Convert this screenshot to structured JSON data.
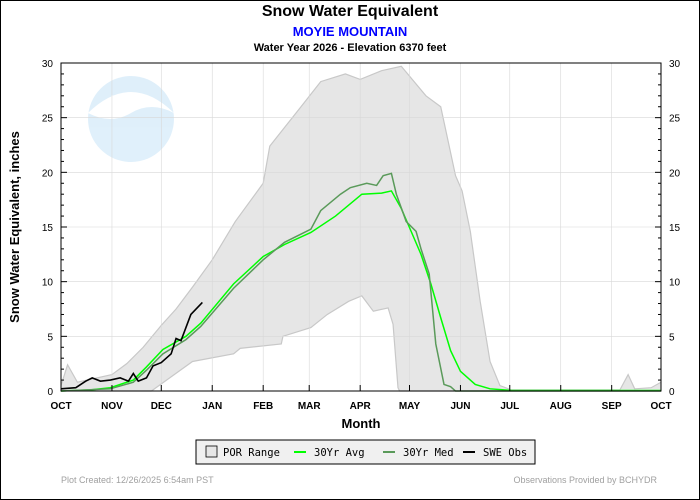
{
  "header": {
    "title": "Snow Water Equivalent",
    "station": "MOYIE MOUNTAIN",
    "subtitle": "Water Year 2026 -  Elevation 6370 feet"
  },
  "footer": {
    "created": "Plot Created: 12/26/2025 6:54am PST",
    "provider": "Observations Provided by BCHYDR"
  },
  "watermark": {
    "logo_text": "NOAA"
  },
  "chart_data": {
    "type": "line",
    "title": "Snow Water Equivalent",
    "xlabel": "Month",
    "ylabel": "Snow Water Equivalent, inches",
    "xlim": [
      "2025-10-01",
      "2026-10-01"
    ],
    "ylim": [
      0,
      30
    ],
    "yticks": [
      0,
      5,
      10,
      15,
      20,
      25,
      30
    ],
    "xticks": [
      {
        "date": "2025-10-01",
        "label": "OCT"
      },
      {
        "date": "2025-11-01",
        "label": "NOV"
      },
      {
        "date": "2025-12-01",
        "label": "DEC"
      },
      {
        "date": "2026-01-01",
        "label": "JAN"
      },
      {
        "date": "2026-02-01",
        "label": "FEB"
      },
      {
        "date": "2026-03-01",
        "label": "MAR"
      },
      {
        "date": "2026-04-01",
        "label": "APR"
      },
      {
        "date": "2026-05-01",
        "label": "MAY"
      },
      {
        "date": "2026-06-01",
        "label": "JUN"
      },
      {
        "date": "2026-07-01",
        "label": "JUL"
      },
      {
        "date": "2026-08-01",
        "label": "AUG"
      },
      {
        "date": "2026-09-01",
        "label": "SEP"
      },
      {
        "date": "2026-10-01",
        "label": "OCT"
      }
    ],
    "grid": true,
    "legend_position": "bottom",
    "colors": {
      "por": "#e6e6e6",
      "por_edge": "#c8c8c8",
      "avg": "#00ff00",
      "med": "#5a9a5a",
      "obs": "#000000"
    },
    "series": [
      {
        "name": "POR Range",
        "kind": "band",
        "upper": [
          [
            "2025-10-01",
            0.5
          ],
          [
            "2025-10-05",
            2.4
          ],
          [
            "2025-10-11",
            0.8
          ],
          [
            "2025-11-01",
            1.5
          ],
          [
            "2025-11-10",
            2.5
          ],
          [
            "2025-11-20",
            4
          ],
          [
            "2025-12-01",
            6
          ],
          [
            "2025-12-10",
            7.5
          ],
          [
            "2025-12-20",
            9.5
          ],
          [
            "2026-01-01",
            12
          ],
          [
            "2026-01-15",
            15.5
          ],
          [
            "2026-02-01",
            19
          ],
          [
            "2026-02-05",
            22.4
          ],
          [
            "2026-02-24",
            26
          ],
          [
            "2026-03-08",
            28.3
          ],
          [
            "2026-03-23",
            29
          ],
          [
            "2026-04-01",
            28.5
          ],
          [
            "2026-04-14",
            29.3
          ],
          [
            "2026-04-26",
            29.7
          ],
          [
            "2026-05-11",
            27
          ],
          [
            "2026-05-20",
            26
          ],
          [
            "2026-05-29",
            19.7
          ],
          [
            "2026-06-02",
            18.3
          ],
          [
            "2026-06-07",
            14.6
          ],
          [
            "2026-06-13",
            8.2
          ],
          [
            "2026-06-19",
            2.7
          ],
          [
            "2026-06-25",
            0.5
          ],
          [
            "2026-07-02",
            0.1
          ],
          [
            "2026-09-06",
            0.1
          ],
          [
            "2026-09-11",
            1.5
          ],
          [
            "2026-09-15",
            0.2
          ],
          [
            "2026-09-25",
            0.3
          ],
          [
            "2026-10-01",
            0.8
          ]
        ],
        "lower": [
          [
            "2025-10-01",
            0
          ],
          [
            "2025-11-25",
            0
          ],
          [
            "2025-12-20",
            2.7
          ],
          [
            "2026-01-14",
            3.4
          ],
          [
            "2026-01-18",
            3.9
          ],
          [
            "2026-02-12",
            4.3
          ],
          [
            "2026-02-13",
            5.0
          ],
          [
            "2026-03-02",
            5.8
          ],
          [
            "2026-03-12",
            7.0
          ],
          [
            "2026-03-25",
            8.2
          ],
          [
            "2026-04-02",
            8.7
          ],
          [
            "2026-04-09",
            7.3
          ],
          [
            "2026-04-18",
            7.6
          ],
          [
            "2026-04-21",
            6.1
          ],
          [
            "2026-04-24",
            0.3
          ],
          [
            "2026-04-25",
            0
          ],
          [
            "2026-10-01",
            0
          ]
        ]
      },
      {
        "name": "30Yr Avg",
        "kind": "line",
        "color": "#00ff00",
        "points": [
          [
            "2025-10-01",
            0
          ],
          [
            "2025-10-19",
            0.1
          ],
          [
            "2025-10-31",
            0.3
          ],
          [
            "2025-11-14",
            1.0
          ],
          [
            "2025-11-22",
            2.2
          ],
          [
            "2025-12-02",
            3.8
          ],
          [
            "2025-12-16",
            5.0
          ],
          [
            "2025-12-25",
            6.2
          ],
          [
            "2026-01-14",
            9.8
          ],
          [
            "2026-02-01",
            12.3
          ],
          [
            "2026-02-14",
            13.4
          ],
          [
            "2026-03-02",
            14.5
          ],
          [
            "2026-03-17",
            16.0
          ],
          [
            "2026-04-02",
            18.0
          ],
          [
            "2026-04-14",
            18.1
          ],
          [
            "2026-04-20",
            18.3
          ],
          [
            "2026-04-26",
            16.7
          ],
          [
            "2026-05-02",
            14.6
          ],
          [
            "2026-05-08",
            12.5
          ],
          [
            "2026-05-14",
            9.8
          ],
          [
            "2026-05-20",
            6.7
          ],
          [
            "2026-05-26",
            3.7
          ],
          [
            "2026-06-01",
            1.8
          ],
          [
            "2026-06-10",
            0.6
          ],
          [
            "2026-06-19",
            0.2
          ],
          [
            "2026-07-02",
            0.05
          ],
          [
            "2026-10-01",
            0.05
          ]
        ]
      },
      {
        "name": "30Yr Med",
        "kind": "line",
        "color": "#5a9a5a",
        "points": [
          [
            "2025-10-01",
            0
          ],
          [
            "2025-10-31",
            0.2
          ],
          [
            "2025-11-14",
            0.8
          ],
          [
            "2025-11-22",
            1.9
          ],
          [
            "2025-12-02",
            3.4
          ],
          [
            "2025-12-16",
            4.7
          ],
          [
            "2025-12-25",
            5.9
          ],
          [
            "2026-01-14",
            9.4
          ],
          [
            "2026-02-01",
            12.0
          ],
          [
            "2026-02-14",
            13.6
          ],
          [
            "2026-03-02",
            14.8
          ],
          [
            "2026-03-08",
            16.5
          ],
          [
            "2026-03-20",
            18.0
          ],
          [
            "2026-03-26",
            18.6
          ],
          [
            "2026-04-05",
            19.0
          ],
          [
            "2026-04-11",
            18.8
          ],
          [
            "2026-04-15",
            19.7
          ],
          [
            "2026-04-20",
            19.9
          ],
          [
            "2026-04-23",
            18.0
          ],
          [
            "2026-04-29",
            15.5
          ],
          [
            "2026-05-05",
            14.6
          ],
          [
            "2026-05-08",
            13.0
          ],
          [
            "2026-05-13",
            10.7
          ],
          [
            "2026-05-17",
            4.3
          ],
          [
            "2026-05-22",
            0.6
          ],
          [
            "2026-05-26",
            0.4
          ],
          [
            "2026-05-29",
            0
          ],
          [
            "2026-10-01",
            0
          ]
        ]
      },
      {
        "name": "SWE Obs",
        "kind": "line",
        "color": "#000000",
        "points": [
          [
            "2025-10-01",
            0.2
          ],
          [
            "2025-10-10",
            0.3
          ],
          [
            "2025-10-16",
            0.9
          ],
          [
            "2025-10-20",
            1.2
          ],
          [
            "2025-10-25",
            0.9
          ],
          [
            "2025-10-31",
            1.0
          ],
          [
            "2025-11-06",
            1.2
          ],
          [
            "2025-11-11",
            0.9
          ],
          [
            "2025-11-14",
            1.6
          ],
          [
            "2025-11-17",
            0.9
          ],
          [
            "2025-11-22",
            1.2
          ],
          [
            "2025-11-26",
            2.3
          ],
          [
            "2025-12-01",
            2.6
          ],
          [
            "2025-12-07",
            3.4
          ],
          [
            "2025-12-10",
            4.8
          ],
          [
            "2025-12-13",
            4.6
          ],
          [
            "2025-12-16",
            5.8
          ],
          [
            "2025-12-19",
            7.0
          ],
          [
            "2025-12-26",
            8.1
          ]
        ]
      }
    ]
  }
}
